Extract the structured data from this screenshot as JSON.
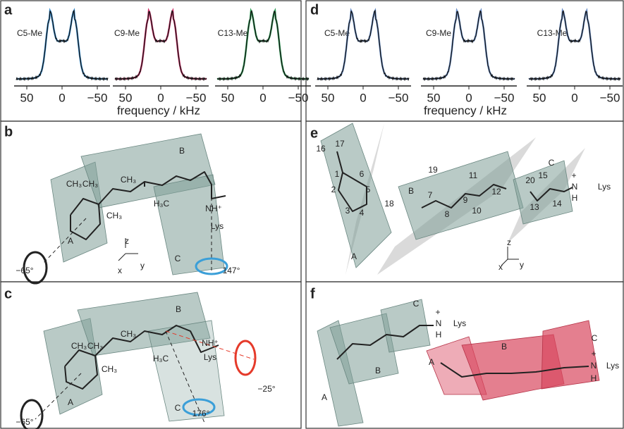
{
  "panels": {
    "a": {
      "label": "a",
      "spectra": [
        "C5-Me",
        "C9-Me",
        "C13-Me"
      ],
      "ticks": [
        "50",
        "0",
        "−50"
      ],
      "axis_label": "frequency / kHz"
    },
    "d": {
      "label": "d",
      "spectra": [
        "C5-Me",
        "C9-Me",
        "C13-Me"
      ],
      "ticks": [
        "50",
        "0",
        "−50"
      ],
      "axis_label": "frequency / kHz"
    },
    "b": {
      "label": "b",
      "texts": [
        "B",
        "CH₃",
        "CH₃",
        "CH₃",
        "CH₃",
        "H₃C",
        "NH⁺",
        "Lys",
        "A",
        "C",
        "z",
        "x",
        "y",
        "−65°",
        "147°"
      ]
    },
    "c": {
      "label": "c",
      "texts": [
        "B",
        "CH₃",
        "CH₃",
        "CH₃",
        "CH₃",
        "H₃C",
        "NH⁺",
        "Lys",
        "A",
        "C",
        "−65°",
        "176°",
        "−25°"
      ]
    },
    "e": {
      "label": "e",
      "texts": [
        "16",
        "17",
        "1",
        "6",
        "2",
        "5",
        "3",
        "4",
        "18",
        "A",
        "19",
        "11",
        "B",
        "7",
        "9",
        "12",
        "8",
        "10",
        "20",
        "15",
        "C",
        "13",
        "14",
        "N",
        "+",
        "H",
        "Lys",
        "z",
        "x",
        "y"
      ]
    },
    "f": {
      "label": "f",
      "texts": [
        "C",
        "N",
        "+",
        "H",
        "Lys",
        "A",
        "B",
        "A",
        "B",
        "C",
        "N",
        "+",
        "H",
        "Lys"
      ]
    }
  }
}
